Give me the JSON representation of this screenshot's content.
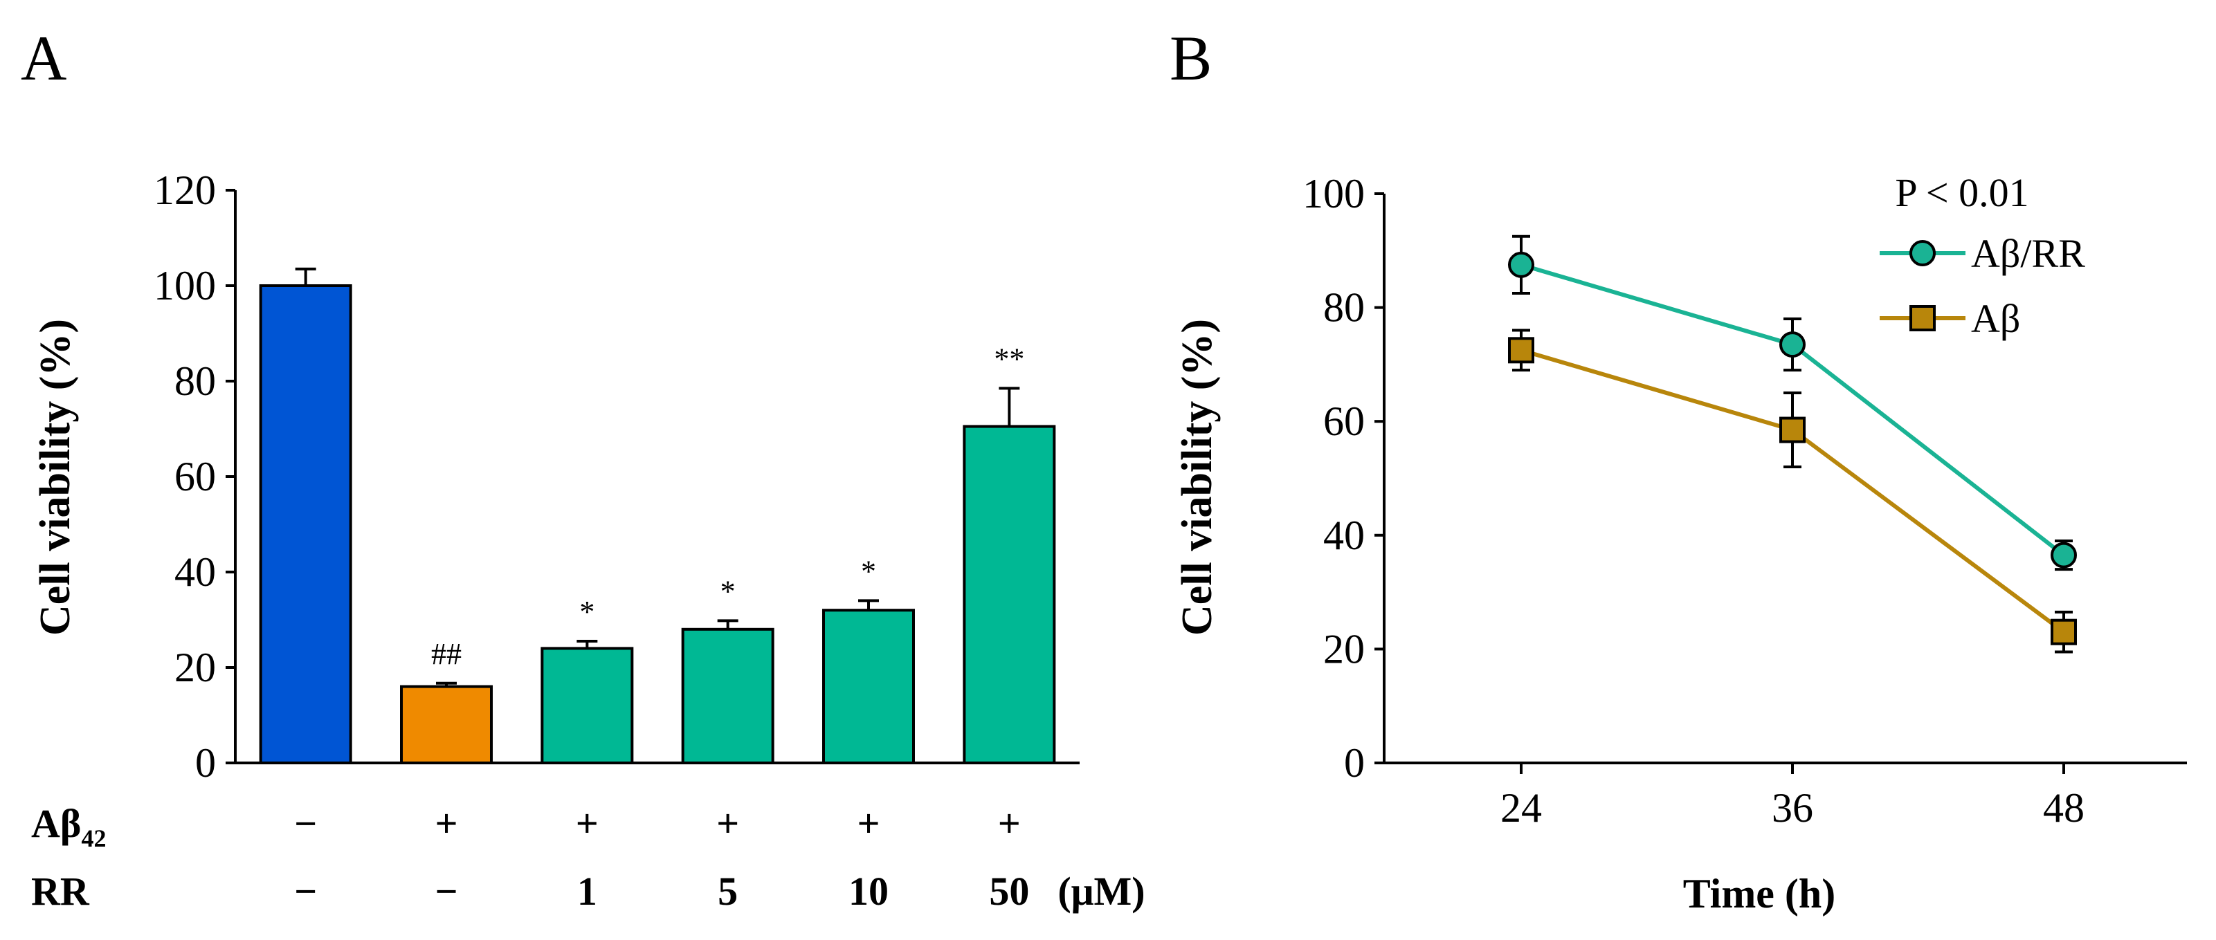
{
  "panels": {
    "a_label": "A",
    "b_label": "B"
  },
  "colors": {
    "control": "#0055d4",
    "abeta": "#ef8a00",
    "rr": "#00b894",
    "line_ab_rr": "#1ab394",
    "line_ab": "#b8860b"
  },
  "chart_data": [
    {
      "type": "bar",
      "ylabel": "Cell viability (%)",
      "ylim": [
        0,
        120
      ],
      "yticks": [
        0,
        20,
        40,
        60,
        80,
        100,
        120
      ],
      "rows": [
        {
          "label": "Aβ",
          "label_sub": "42",
          "values": [
            "−",
            "+",
            "+",
            "+",
            "+",
            "+"
          ]
        },
        {
          "label": "RR",
          "values": [
            "−",
            "−",
            "1",
            "5",
            "10",
            "50"
          ],
          "unit": "(μM)"
        }
      ],
      "values": [
        100,
        16,
        24,
        28,
        32,
        70.5
      ],
      "errors": [
        3.5,
        0.7,
        1.5,
        1.8,
        2,
        8
      ],
      "annotations": [
        "",
        "##",
        "*",
        "*",
        "*",
        "**"
      ],
      "bar_colors": [
        "control",
        "abeta",
        "rr",
        "rr",
        "rr",
        "rr"
      ]
    },
    {
      "type": "line",
      "ylabel": "Cell viability (%)",
      "xlabel": "Time (h)",
      "x": [
        24,
        36,
        48
      ],
      "ylim": [
        0,
        100
      ],
      "yticks": [
        0,
        20,
        40,
        60,
        80,
        100
      ],
      "annotation": "P < 0.01",
      "legend_position": "top-right",
      "series": [
        {
          "name": "Aβ/RR",
          "values": [
            87.5,
            73.5,
            36.5
          ],
          "errors": [
            5,
            4.5,
            2.5
          ],
          "marker": "circle",
          "color": "line_ab_rr"
        },
        {
          "name": "Aβ",
          "values": [
            72.5,
            58.5,
            23
          ],
          "errors": [
            3.5,
            6.5,
            3.5
          ],
          "marker": "square",
          "color": "line_ab"
        }
      ]
    }
  ]
}
